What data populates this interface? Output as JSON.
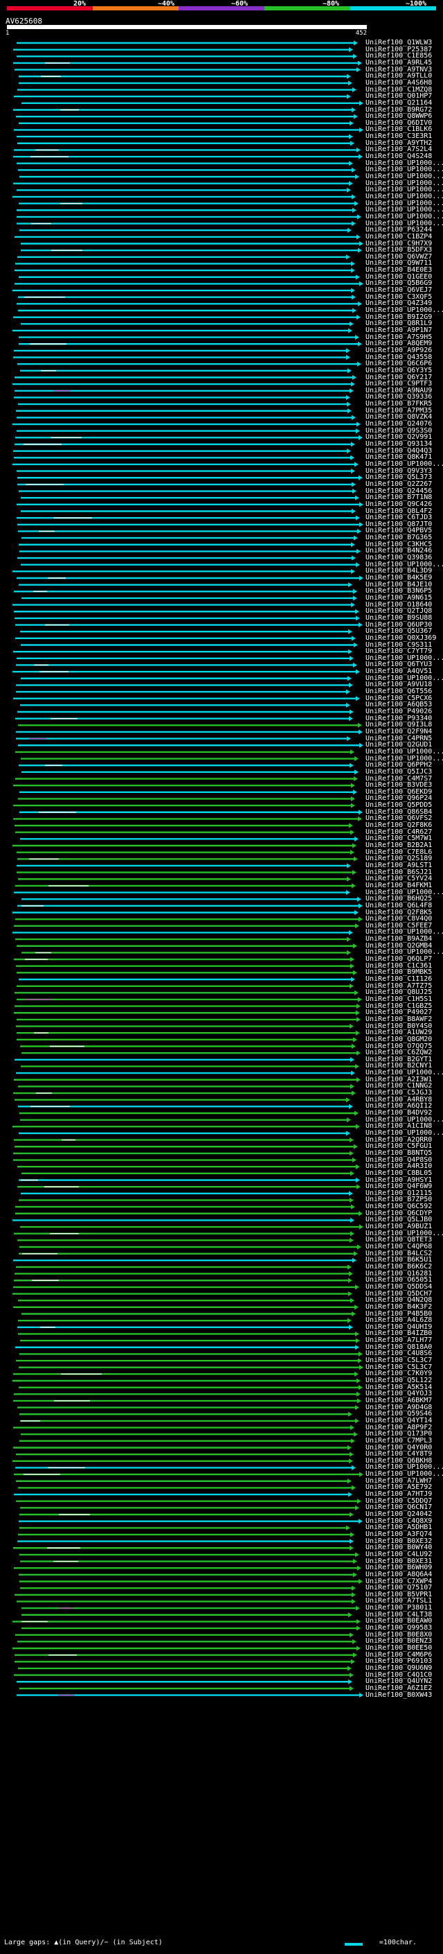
{
  "legend": {
    "colors": [
      "#e8002a",
      "#f07818",
      "#8a30c8",
      "#28c028",
      "#00d8e8"
    ],
    "ticks": [
      "20%",
      "~40%",
      "~60%",
      "~80%",
      "~100%"
    ]
  },
  "query": {
    "id": "AV625608",
    "start": "1",
    "end": "452"
  },
  "hits": [
    "UniRef100_Q1WLW3",
    "UniRef100_P25387",
    "UniRef100_C1E856",
    "UniRef100_A9RL45",
    "UniRef100_A9TNV3",
    "UniRef100_A9TLL0",
    "UniRef100_A4S6H8",
    "UniRef100_C1MZQ8",
    "UniRef100_Q01HP7",
    "UniRef100_Q21164",
    "UniRef100_B9RG72",
    "UniRef100_Q8WWP6",
    "UniRef100_Q6DIV0",
    "UniRef100_C1BLK6",
    "UniRef100_C3E3R1",
    "UniRef100_A9YTH2",
    "UniRef100_A7S2L4",
    "UniRef100_Q4S248",
    "UniRef100_UP1000...",
    "UniRef100_UP1000...",
    "UniRef100_UP1000...",
    "UniRef100_UP1000...",
    "UniRef100_UP1000...",
    "UniRef100_UP1000...",
    "UniRef100_UP1000...",
    "UniRef100_UP1000...",
    "UniRef100_UP1000...",
    "UniRef100_UP1000...",
    "UniRef100_P63244",
    "UniRef100_C1BZP4",
    "UniRef100_C9H7X9",
    "UniRef100_B5DFX3",
    "UniRef100_Q6VWZ7",
    "UniRef100_Q9W711",
    "UniRef100_B4E0E3",
    "UniRef100_Q1GEE0",
    "UniRef100_Q5B6G9",
    "UniRef100_Q6VEJ7",
    "UniRef100_C3XQF5",
    "UniRef100_Q4Z349",
    "UniRef100_UP1000...",
    "UniRef100_B9I2G9",
    "UniRef100_Q8R1L9",
    "UniRef100_A9P1N7",
    "UniRef100_A7S9H5",
    "UniRef100_A8QEM9",
    "UniRef100_A9P926",
    "UniRef100_Q43558",
    "UniRef100_Q6C6P6",
    "UniRef100_Q6Y3Y5",
    "UniRef100_Q6Y217",
    "UniRef100_C9PTF3",
    "UniRef100_A9NAU9",
    "UniRef100_Q39336",
    "UniRef100_B7FKR5",
    "UniRef100_A7PM35",
    "UniRef100_Q8VZK4",
    "UniRef100_Q24076",
    "UniRef100_Q9S3S0",
    "UniRef100_Q2V991",
    "UniRef100_Q93134",
    "UniRef100_Q4Q4Q3",
    "UniRef100_Q8K471",
    "UniRef100_UP1000...",
    "UniRef100_Q9V3Y3",
    "UniRef100_Q5L373",
    "UniRef100_Q2Z267",
    "UniRef100_Q24456",
    "UniRef100_B7T1N8",
    "UniRef100_Q9C426",
    "UniRef100_Q8L4F2",
    "UniRef100_C6TJD3",
    "UniRef100_Q87JT0",
    "UniRef100_Q4PBV5",
    "UniRef100_B7G365",
    "UniRef100_C3KHC5",
    "UniRef100_B4N246",
    "UniRef100_Q39836",
    "UniRef100_UP1000...",
    "UniRef100_B4L3D9",
    "UniRef100_B4K5E9",
    "UniRef100_B4JE10",
    "UniRef100_B3N6P5",
    "UniRef100_A9N615",
    "UniRef100_O18640",
    "UniRef100_Q2TJQ8",
    "UniRef100_B9SU88",
    "UniRef100_Q6UP30",
    "UniRef100_Q5U367",
    "UniRef100_Q0XJ369",
    "UniRef100_C9S311",
    "UniRef100_C7YT79",
    "UniRef100_UP1000...",
    "UniRef100_Q6TYU3",
    "UniRef100_A4QV51",
    "UniRef100_UP1000...",
    "UniRef100_A9VU18",
    "UniRef100_Q6T556",
    "UniRef100_C5PCX6",
    "UniRef100_A6QB53",
    "UniRef100_P49026",
    "UniRef100_P93340",
    "UniRef100_Q9I3L8",
    "UniRef100_Q2F9N4",
    "UniRef100_C4PRN5",
    "UniRef100_Q2GUD1",
    "UniRef100_UP1000...",
    "UniRef100_UP1000...",
    "UniRef100_Q6PPH2",
    "UniRef100_Q5IJC3",
    "UniRef100_C4M7S7",
    "UniRef100_B3VDE3",
    "UniRef100_Q6EKD9",
    "UniRef100_Q96P24",
    "UniRef100_Q5PDD5",
    "UniRef100_Q86SB4",
    "UniRef100_Q6VFS2",
    "UniRef100_Q2F8K6",
    "UniRef100_C4R627",
    "UniRef100_C5M7W1",
    "UniRef100_B2B2A1",
    "UniRef100_C7E8L6",
    "UniRef100_Q2S189",
    "UniRef100_A9LST1",
    "UniRef100_B6SJ21",
    "UniRef100_C5YV24",
    "UniRef100_B4FKM1",
    "UniRef100_UP1000...",
    "UniRef100_B6HQ25",
    "UniRef100_Q6L4F8",
    "UniRef100_Q2F8K5",
    "UniRef100_C8V4Q0",
    "UniRef100_C5FEE7",
    "UniRef100_UP1000...",
    "UniRef100_B9AZB4",
    "UniRef100_Q2GMB4",
    "UniRef100_UP1000...",
    "UniRef100_Q6QLP7",
    "UniRef100_C1C361",
    "UniRef100_B9MBK5",
    "UniRef100_C1I126",
    "UniRef100_A7TZ75",
    "UniRef100_Q8UJ25",
    "UniRef100_C1H5S1",
    "UniRef100_C1GBZ5",
    "UniRef100_P49027",
    "UniRef100_B8AWF2",
    "UniRef100_B0Y4S0",
    "UniRef100_A1UW29",
    "UniRef100_Q8GM20",
    "UniRef100_O7QQ75",
    "UniRef100_C6ZQW2",
    "UniRef100_B2GYT1",
    "UniRef100_B2CNY1",
    "UniRef100_UP1000...",
    "UniRef100_A2I3W1",
    "UniRef100_C1NNG2",
    "UniRef100_C5JGJ3",
    "UniRef100_A4RBY8",
    "UniRef100_A6QI12",
    "UniRef100_B4DV92",
    "UniRef100_UP1000...",
    "UniRef100_A1CIN8",
    "UniRef100_UP1000...",
    "UniRef100_A2QRR0",
    "UniRef100_C5FGU1",
    "UniRef100_B8NTQ5",
    "UniRef100_Q4P8S0",
    "UniRef100_A4R3I0",
    "UniRef100_C8BL05",
    "UniRef100_A9HSY1",
    "UniRef100_Q4F6W9",
    "UniRef100_Q12115",
    "UniRef100_B7ZP50",
    "UniRef100_Q6C592",
    "UniRef100_Q6CDYP",
    "UniRef100_Q5LJB0",
    "UniRef100_A9BUZ1",
    "UniRef100_UP1000...",
    "UniRef100_Q8TET3",
    "UniRef100_C4QP68",
    "UniRef100_B4LCS2",
    "UniRef100_B6K5U1",
    "UniRef100_B6K6C2",
    "UniRef100_Q16281",
    "UniRef100_O65051",
    "UniRef100_Q5DDS4",
    "UniRef100_Q5DCH7",
    "UniRef100_Q4N2Q8",
    "UniRef100_B4K3F2",
    "UniRef100_P4B5B0",
    "UniRef100_A4L6Z8",
    "UniRef100_Q4UHI9",
    "UniRef100_B4IZB0",
    "UniRef100_A7LH77",
    "UniRef100_Q818A0",
    "UniRef100_C4U8S6",
    "UniRef100_C5L3C7",
    "UniRef100_C5L3C7",
    "UniRef100_C7K0Y9",
    "UniRef100_Q5L122",
    "UniRef100_A5K514",
    "UniRef100_Q4YOJ3",
    "UniRef100_A6BKM7",
    "UniRef100_A9D4G8",
    "UniRef100_Q59S46",
    "UniRef100_Q4YT14",
    "UniRef100_A8P9F2",
    "UniRef100_Q173P0",
    "UniRef100_C7MPL3",
    "UniRef100_Q4Y0R0",
    "UniRef100_C4Y8T9",
    "UniRef100_Q6BKH8",
    "UniRef100_UP1000...",
    "UniRef100_UP1000...",
    "UniRef100_A7LWH7",
    "UniRef100_A5E792",
    "UniRef100_A7HTJ9",
    "UniRef100_C5DDQ7",
    "UniRef100_Q6CN17",
    "UniRef100_Q24042",
    "UniRef100_C4Q8X9",
    "UniRef100_A5DHB1",
    "UniRef100_A3FQ74",
    "UniRef100_B0XE32",
    "UniRef100_B0WY40",
    "UniRef100_C4LU92",
    "UniRef100_B0XE31",
    "UniRef100_B6WH09",
    "UniRef100_A8Q6A4",
    "UniRef100_C7XWP4",
    "UniRef100_Q75107",
    "UniRef100_B5VPR1",
    "UniRef100_A7TSL1",
    "UniRef100_P38011",
    "UniRef100_C4LT38",
    "UniRef100_B0EAW0",
    "UniRef100_Q99583",
    "UniRef100_B0E8X0",
    "UniRef100_B0ENZ3",
    "UniRef100_B0EE50",
    "UniRef100_C4M6P6",
    "UniRef100_P69103",
    "UniRef100_Q9U6N9",
    "UniRef100_C4Q1C0",
    "UniRef100_Q4UYN2",
    "UniRef100_A6Z1E2",
    "UniRef100_B0XW43"
  ],
  "footer": {
    "gaps": "Large gaps: ▲(in Query)/− (in Subject)",
    "scale": "=100char."
  }
}
